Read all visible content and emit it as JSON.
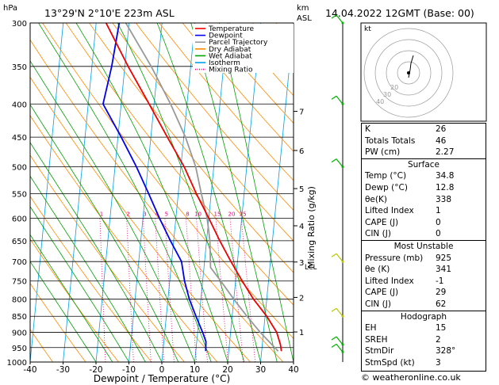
{
  "header": {
    "hpa_unit": "hPa",
    "location": "13°29'N  2°10'E  223m  ASL",
    "km_unit": "km",
    "asl_unit": "ASL",
    "datetime": "14.04.2022  12GMT  (Base: 00)"
  },
  "chart_data": {
    "type": "skew-t log-p",
    "xlabel": "Dewpoint / Temperature (°C)",
    "ylabel_right": "Mixing Ratio (g/kg)",
    "x_ticks": [
      -40,
      -30,
      -20,
      -10,
      0,
      10,
      20,
      30,
      40
    ],
    "pressure_levels": [
      300,
      350,
      400,
      450,
      500,
      550,
      600,
      650,
      700,
      750,
      800,
      850,
      900,
      950,
      1000
    ],
    "km_ticks": [
      1,
      2,
      3,
      4,
      5,
      6,
      7
    ],
    "lcl_label": "LCL",
    "mixing_ratio_labels": [
      "1",
      "2",
      "3",
      "4",
      "5",
      "8",
      "10",
      "15",
      "20",
      "25"
    ],
    "legend": [
      {
        "name": "Temperature",
        "color": "#ee0000"
      },
      {
        "name": "Dewpoint",
        "color": "#0000ee"
      },
      {
        "name": "Parcel Trajectory",
        "color": "#999999"
      },
      {
        "name": "Dry Adiabat",
        "color": "#ff8c00"
      },
      {
        "name": "Wet Adiabat",
        "color": "#00a000"
      },
      {
        "name": "Isotherm",
        "color": "#00a0e8"
      },
      {
        "name": "Mixing Ratio",
        "color": "#e0007a"
      }
    ],
    "temperature": [
      [
        962,
        36
      ],
      [
        940,
        35.5
      ],
      [
        900,
        34
      ],
      [
        850,
        30.5
      ],
      [
        800,
        26
      ],
      [
        750,
        22
      ],
      [
        700,
        18
      ],
      [
        650,
        14
      ],
      [
        600,
        10
      ],
      [
        550,
        5.5
      ],
      [
        500,
        1
      ],
      [
        450,
        -5
      ],
      [
        400,
        -11.5
      ],
      [
        350,
        -19
      ],
      [
        300,
        -27
      ]
    ],
    "dewpoint": [
      [
        962,
        13
      ],
      [
        930,
        12.8
      ],
      [
        900,
        11.5
      ],
      [
        850,
        9
      ],
      [
        800,
        6.5
      ],
      [
        750,
        4.5
      ],
      [
        700,
        3
      ],
      [
        650,
        -1
      ],
      [
        600,
        -5
      ],
      [
        550,
        -9
      ],
      [
        500,
        -13.5
      ],
      [
        450,
        -19
      ],
      [
        400,
        -25.5
      ],
      [
        350,
        -24
      ],
      [
        300,
        -23
      ]
    ],
    "parcel": [
      [
        962,
        35
      ],
      [
        900,
        29
      ],
      [
        850,
        24.5
      ],
      [
        800,
        20
      ],
      [
        750,
        15.5
      ],
      [
        715,
        12
      ],
      [
        650,
        11
      ],
      [
        600,
        9.5
      ],
      [
        550,
        7
      ],
      [
        500,
        4.5
      ],
      [
        450,
        0.5
      ],
      [
        400,
        -5
      ],
      [
        350,
        -12
      ],
      [
        300,
        -21
      ]
    ],
    "wind_barbs_pressure": [
      965,
      940,
      850,
      700,
      500,
      400,
      300
    ]
  },
  "hodograph": {
    "unit_label": "kt",
    "ring_labels": [
      "20",
      "30",
      "40"
    ]
  },
  "indices": {
    "top": [
      {
        "label": "K",
        "value": "26"
      },
      {
        "label": "Totals Totals",
        "value": "46"
      },
      {
        "label": "PW (cm)",
        "value": "2.27"
      }
    ],
    "surface_title": "Surface",
    "surface": [
      {
        "label": "Temp (°C)",
        "value": "34.8"
      },
      {
        "label": "Dewp (°C)",
        "value": "12.8"
      },
      {
        "label": "θe(K)",
        "value": "338"
      },
      {
        "label": "Lifted Index",
        "value": "1"
      },
      {
        "label": "CAPE (J)",
        "value": "0"
      },
      {
        "label": "CIN (J)",
        "value": "0"
      }
    ],
    "unstable_title": "Most Unstable",
    "unstable": [
      {
        "label": "Pressure (mb)",
        "value": "925"
      },
      {
        "label": "θe (K)",
        "value": "341"
      },
      {
        "label": "Lifted Index",
        "value": "-1"
      },
      {
        "label": "CAPE (J)",
        "value": "29"
      },
      {
        "label": "CIN (J)",
        "value": "62"
      }
    ],
    "hodo_title": "Hodograph",
    "hodo": [
      {
        "label": "EH",
        "value": "15"
      },
      {
        "label": "SREH",
        "value": "2"
      },
      {
        "label": "StmDir",
        "value": "328°"
      },
      {
        "label": "StmSpd (kt)",
        "value": "3"
      }
    ]
  },
  "credit": "© weatheronline.co.uk"
}
